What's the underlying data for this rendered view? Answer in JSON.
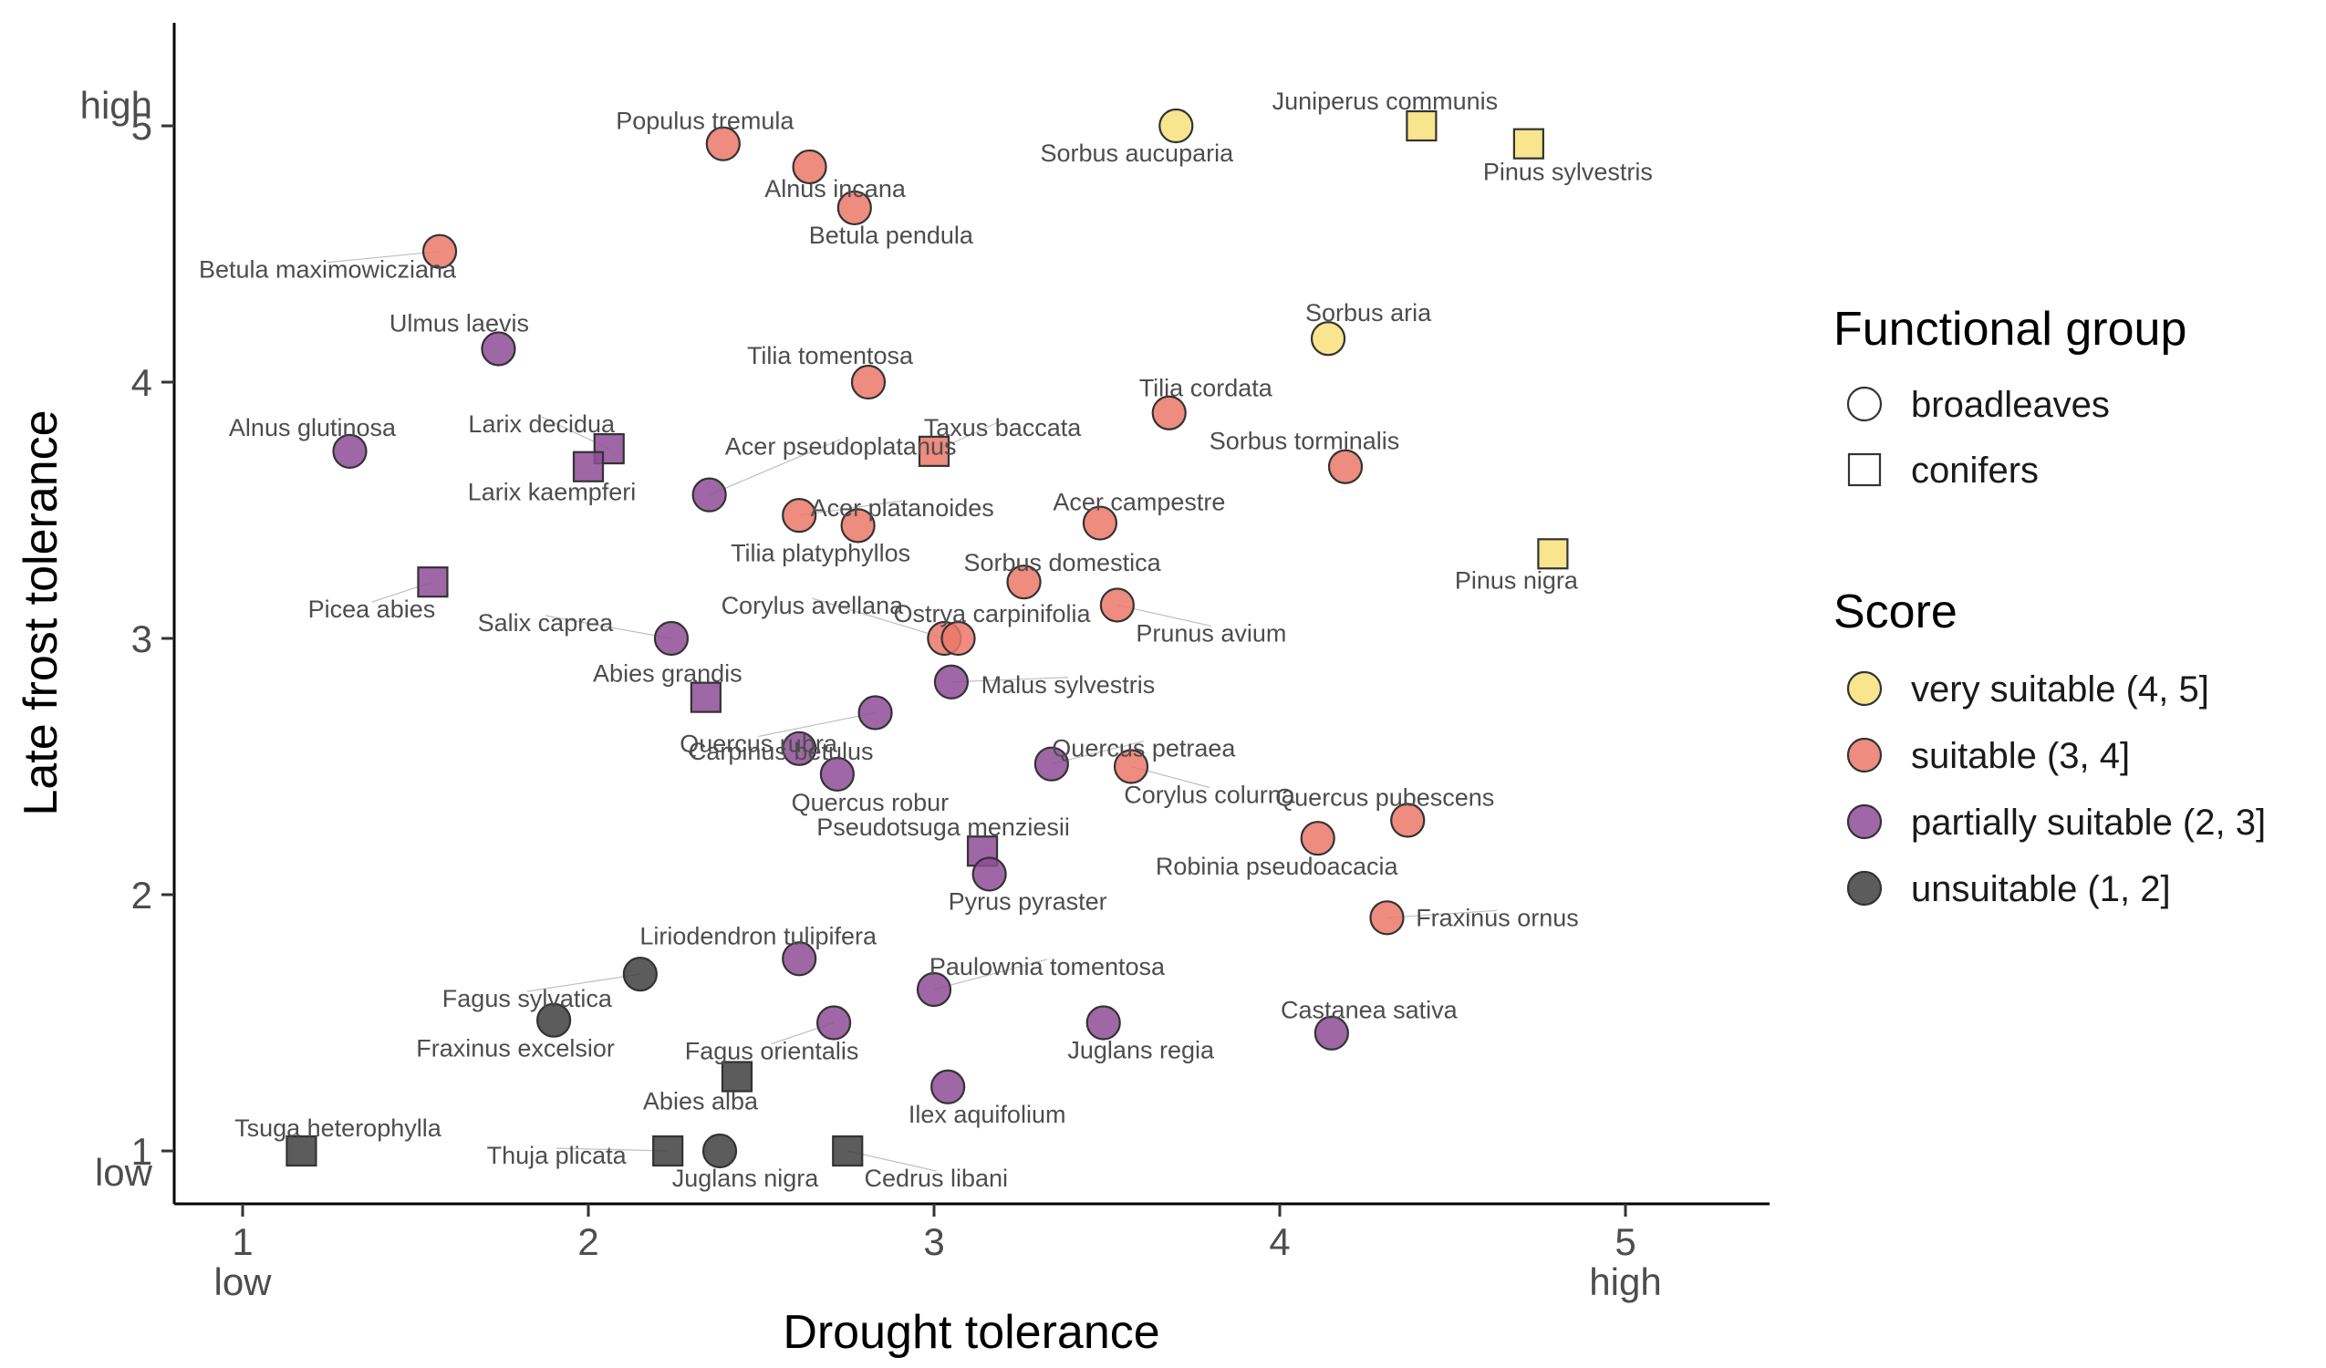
{
  "chart_data": {
    "type": "scatter",
    "xlabel": "Drought tolerance",
    "ylabel": "Late frost tolerance",
    "xlim": [
      0.8,
      5.4
    ],
    "ylim": [
      0.8,
      5.4
    ],
    "x_ticks": [
      1,
      2,
      3,
      4,
      5
    ],
    "y_ticks": [
      1,
      2,
      3,
      4,
      5
    ],
    "x_low_label": "low",
    "x_high_label": "high",
    "y_low_label": "low",
    "y_high_label": "high",
    "grid": false,
    "legend_placement": "right",
    "legend": {
      "group_title": "Functional group",
      "groups": [
        {
          "key": "broadleaves",
          "label": "broadleaves",
          "shape": "circle"
        },
        {
          "key": "conifers",
          "label": "conifers",
          "shape": "square"
        }
      ],
      "score_title": "Score",
      "scores": [
        {
          "key": "very",
          "label": "very suitable (4, 5]",
          "color": "#F7E07A"
        },
        {
          "key": "suit",
          "label": "suitable (3, 4]",
          "color": "#EA7869"
        },
        {
          "key": "part",
          "label": "partially suitable (2, 3]",
          "color": "#8E4C96"
        },
        {
          "key": "uns",
          "label": "unsuitable (1, 2]",
          "color": "#404040"
        }
      ]
    },
    "points": [
      {
        "name": "Populus tremula",
        "x": 2.39,
        "y": 4.93,
        "group": "broadleaves",
        "score": "suit"
      },
      {
        "name": "Alnus incana",
        "x": 2.64,
        "y": 4.84,
        "group": "broadleaves",
        "score": "suit"
      },
      {
        "name": "Betula pendula",
        "x": 2.77,
        "y": 4.68,
        "group": "broadleaves",
        "score": "suit"
      },
      {
        "name": "Betula maximowicziana",
        "x": 1.57,
        "y": 4.51,
        "group": "broadleaves",
        "score": "suit"
      },
      {
        "name": "Sorbus aucuparia",
        "x": 3.7,
        "y": 5.0,
        "group": "broadleaves",
        "score": "very"
      },
      {
        "name": "Juniperus communis",
        "x": 4.41,
        "y": 5.0,
        "group": "conifers",
        "score": "very"
      },
      {
        "name": "Pinus sylvestris",
        "x": 4.72,
        "y": 4.93,
        "group": "conifers",
        "score": "very"
      },
      {
        "name": "Ulmus laevis",
        "x": 1.74,
        "y": 4.13,
        "group": "broadleaves",
        "score": "part"
      },
      {
        "name": "Tilia tomentosa",
        "x": 2.81,
        "y": 4.0,
        "group": "broadleaves",
        "score": "suit"
      },
      {
        "name": "Sorbus aria",
        "x": 4.14,
        "y": 4.17,
        "group": "broadleaves",
        "score": "very"
      },
      {
        "name": "Tilia cordata",
        "x": 3.68,
        "y": 3.88,
        "group": "broadleaves",
        "score": "suit"
      },
      {
        "name": "Alnus glutinosa",
        "x": 1.31,
        "y": 3.73,
        "group": "broadleaves",
        "score": "part"
      },
      {
        "name": "Larix decidua",
        "x": 2.06,
        "y": 3.74,
        "group": "conifers",
        "score": "part"
      },
      {
        "name": "Larix kaempferi",
        "x": 2.0,
        "y": 3.67,
        "group": "conifers",
        "score": "part"
      },
      {
        "name": "Acer pseudoplatanus",
        "x": 2.35,
        "y": 3.56,
        "group": "broadleaves",
        "score": "part"
      },
      {
        "name": "Taxus baccata",
        "x": 3.0,
        "y": 3.73,
        "group": "conifers",
        "score": "suit"
      },
      {
        "name": "Sorbus torminalis",
        "x": 4.19,
        "y": 3.67,
        "group": "broadleaves",
        "score": "suit"
      },
      {
        "name": "Acer platanoides",
        "x": 2.61,
        "y": 3.48,
        "group": "broadleaves",
        "score": "suit"
      },
      {
        "name": "Tilia platyphyllos",
        "x": 2.78,
        "y": 3.44,
        "group": "broadleaves",
        "score": "suit"
      },
      {
        "name": "Acer campestre",
        "x": 3.48,
        "y": 3.45,
        "group": "broadleaves",
        "score": "suit"
      },
      {
        "name": "Sorbus domestica",
        "x": 3.26,
        "y": 3.22,
        "group": "broadleaves",
        "score": "suit"
      },
      {
        "name": "Prunus avium",
        "x": 3.53,
        "y": 3.13,
        "group": "broadleaves",
        "score": "suit"
      },
      {
        "name": "Pinus nigra",
        "x": 4.79,
        "y": 3.33,
        "group": "conifers",
        "score": "very"
      },
      {
        "name": "Picea abies",
        "x": 1.55,
        "y": 3.22,
        "group": "conifers",
        "score": "part"
      },
      {
        "name": "Salix caprea",
        "x": 2.24,
        "y": 3.0,
        "group": "broadleaves",
        "score": "part"
      },
      {
        "name": "Corylus avellana",
        "x": 3.03,
        "y": 3.0,
        "group": "broadleaves",
        "score": "suit"
      },
      {
        "name": "Ostrya carpinifolia",
        "x": 3.07,
        "y": 3.0,
        "group": "broadleaves",
        "score": "suit"
      },
      {
        "name": "Abies grandis",
        "x": 2.34,
        "y": 2.77,
        "group": "conifers",
        "score": "part"
      },
      {
        "name": "Malus sylvestris",
        "x": 3.05,
        "y": 2.83,
        "group": "broadleaves",
        "score": "part"
      },
      {
        "name": "Quercus rubra",
        "x": 2.83,
        "y": 2.71,
        "group": "broadleaves",
        "score": "part"
      },
      {
        "name": "Carpinus betulus",
        "x": 2.61,
        "y": 2.57,
        "group": "broadleaves",
        "score": "part"
      },
      {
        "name": "Quercus robur",
        "x": 2.72,
        "y": 2.47,
        "group": "broadleaves",
        "score": "part"
      },
      {
        "name": "Quercus petraea",
        "x": 3.34,
        "y": 2.51,
        "group": "broadleaves",
        "score": "part"
      },
      {
        "name": "Corylus colurna",
        "x": 3.57,
        "y": 2.5,
        "group": "broadleaves",
        "score": "suit"
      },
      {
        "name": "Quercus pubescens",
        "x": 4.37,
        "y": 2.29,
        "group": "broadleaves",
        "score": "suit"
      },
      {
        "name": "Robinia pseudoacacia",
        "x": 4.11,
        "y": 2.22,
        "group": "broadleaves",
        "score": "suit"
      },
      {
        "name": "Pseudotsuga menziesii",
        "x": 3.14,
        "y": 2.17,
        "group": "conifers",
        "score": "part"
      },
      {
        "name": "Pyrus pyraster",
        "x": 3.16,
        "y": 2.08,
        "group": "broadleaves",
        "score": "part"
      },
      {
        "name": "Fraxinus ornus",
        "x": 4.31,
        "y": 1.91,
        "group": "broadleaves",
        "score": "suit"
      },
      {
        "name": "Liriodendron tulipifera",
        "x": 2.61,
        "y": 1.75,
        "group": "broadleaves",
        "score": "part"
      },
      {
        "name": "Paulownia tomentosa",
        "x": 3.0,
        "y": 1.63,
        "group": "broadleaves",
        "score": "part"
      },
      {
        "name": "Fagus sylvatica",
        "x": 2.15,
        "y": 1.69,
        "group": "broadleaves",
        "score": "uns"
      },
      {
        "name": "Fraxinus excelsior",
        "x": 1.9,
        "y": 1.51,
        "group": "broadleaves",
        "score": "uns"
      },
      {
        "name": "Fagus orientalis",
        "x": 2.71,
        "y": 1.5,
        "group": "broadleaves",
        "score": "part"
      },
      {
        "name": "Juglans regia",
        "x": 3.49,
        "y": 1.5,
        "group": "broadleaves",
        "score": "part"
      },
      {
        "name": "Castanea sativa",
        "x": 4.15,
        "y": 1.46,
        "group": "broadleaves",
        "score": "part"
      },
      {
        "name": "Abies alba",
        "x": 2.43,
        "y": 1.29,
        "group": "conifers",
        "score": "uns"
      },
      {
        "name": "Ilex aquifolium",
        "x": 3.04,
        "y": 1.25,
        "group": "broadleaves",
        "score": "part"
      },
      {
        "name": "Tsuga heterophylla",
        "x": 1.17,
        "y": 1.0,
        "group": "conifers",
        "score": "uns"
      },
      {
        "name": "Thuja plicata",
        "x": 2.23,
        "y": 1.0,
        "group": "conifers",
        "score": "uns"
      },
      {
        "name": "Juglans nigra",
        "x": 2.38,
        "y": 1.0,
        "group": "broadleaves",
        "score": "uns"
      },
      {
        "name": "Cedrus libani",
        "x": 2.75,
        "y": 1.0,
        "group": "conifers",
        "score": "uns"
      }
    ]
  }
}
